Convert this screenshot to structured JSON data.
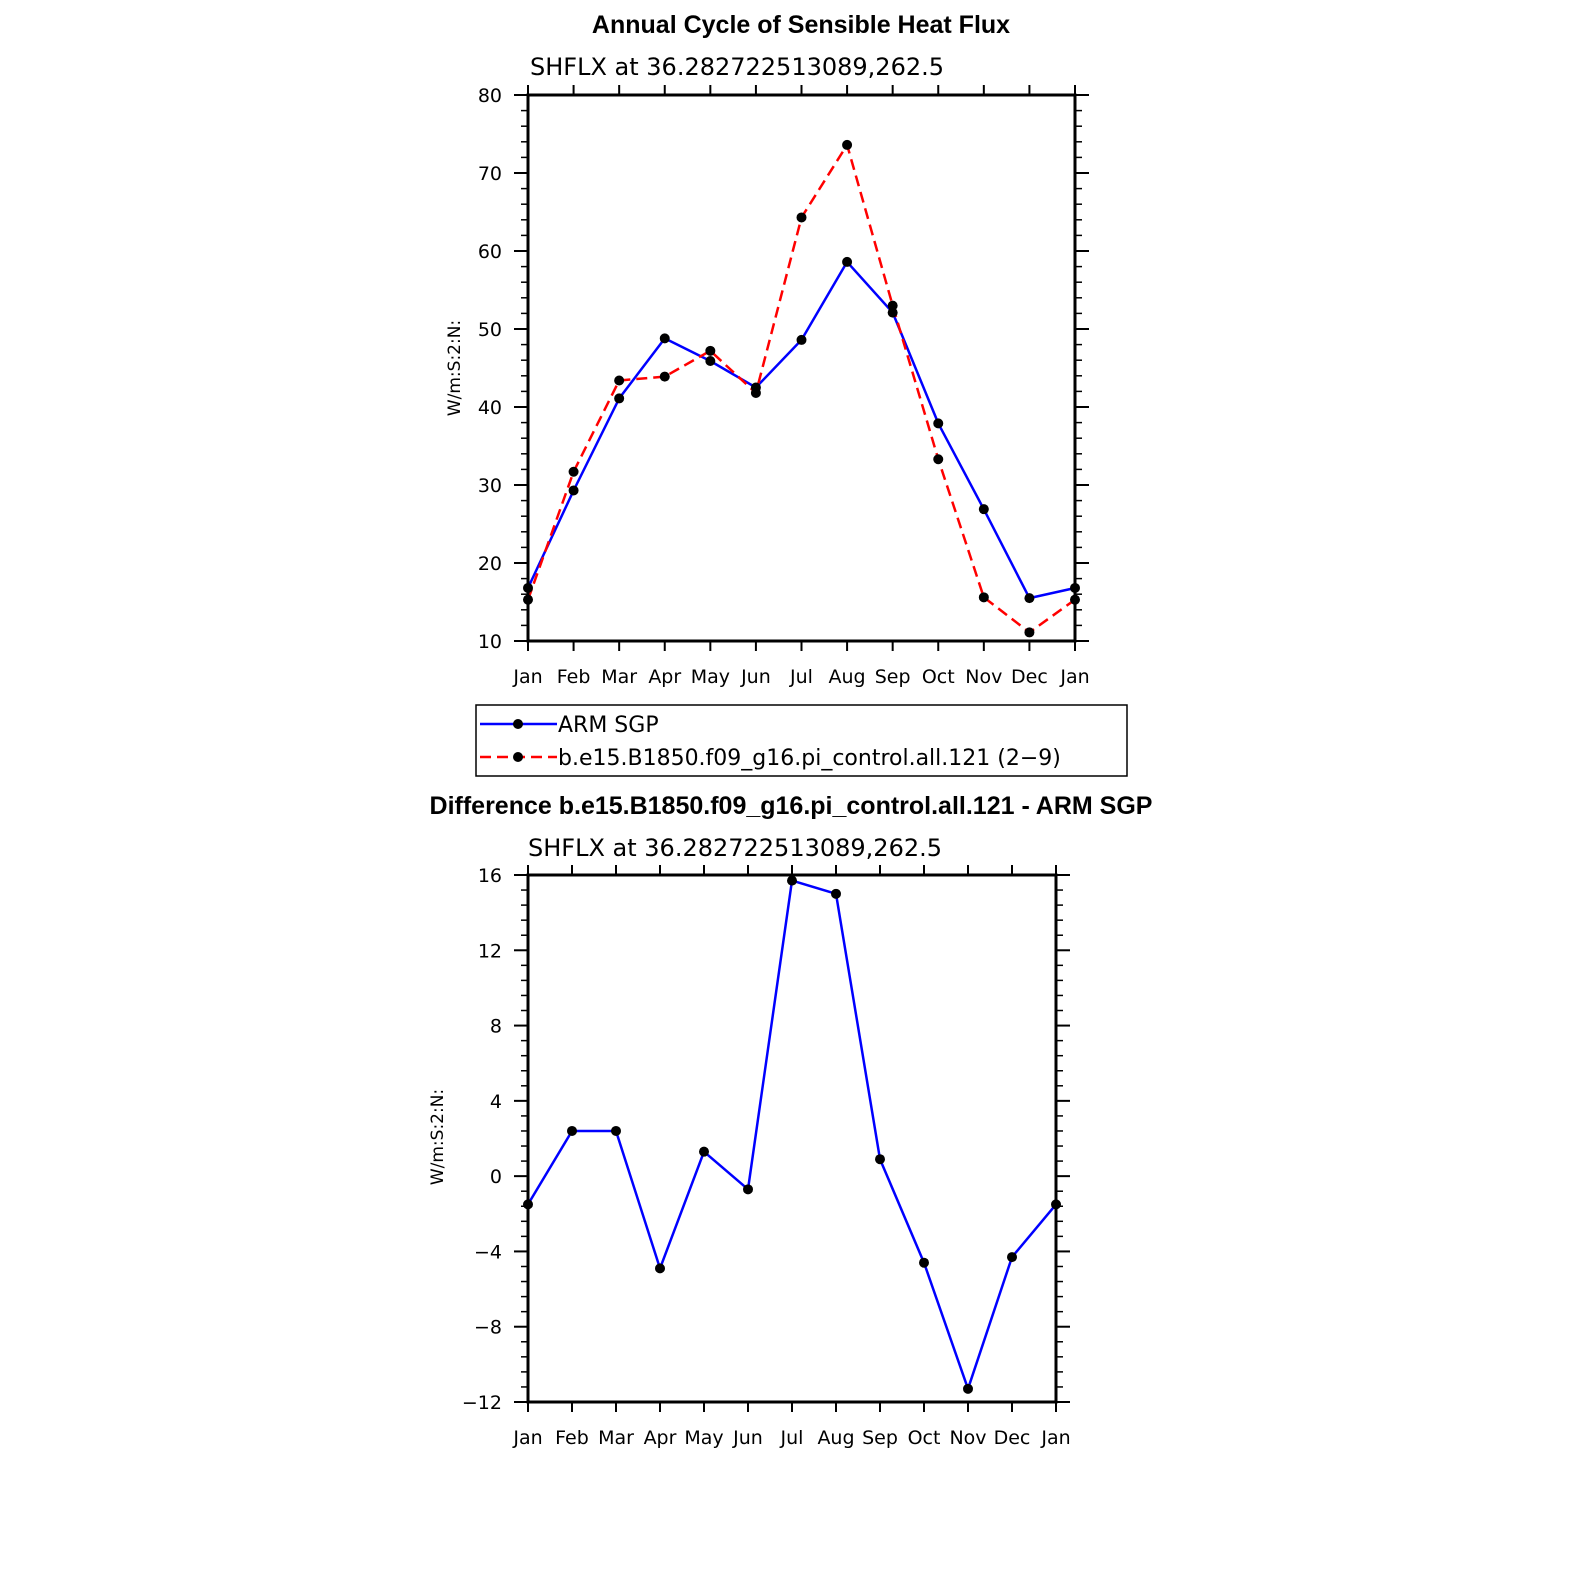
{
  "chart_data": [
    {
      "type": "line",
      "title": "Annual Cycle of Sensible Heat Flux",
      "subtitle": "SHFLX at 36.282722513089,262.5",
      "xlabel": "",
      "ylabel": "W/m:S:2:N:",
      "categories": [
        "Jan",
        "Feb",
        "Mar",
        "Apr",
        "May",
        "Jun",
        "Jul",
        "Aug",
        "Sep",
        "Oct",
        "Nov",
        "Dec",
        "Jan"
      ],
      "ylim": [
        10,
        80
      ],
      "yticks": [
        10,
        20,
        30,
        40,
        50,
        60,
        70,
        80
      ],
      "ytick_labels": [
        "10",
        "20",
        "30",
        "40",
        "50",
        "60",
        "70",
        "80"
      ],
      "grid": false,
      "legend_position": "below",
      "series": [
        {
          "name": "ARM SGP",
          "color": "#0000ff",
          "style": "solid",
          "values": [
            16.8,
            29.3,
            41.1,
            48.8,
            45.9,
            42.5,
            48.6,
            58.6,
            52.1,
            37.9,
            26.9,
            15.5,
            16.8
          ]
        },
        {
          "name": "b.e15.B1850.f09_g16.pi_control.all.121 (2−9)",
          "color": "#ff0000",
          "style": "dashed",
          "values": [
            15.3,
            31.7,
            43.4,
            43.9,
            47.2,
            41.8,
            64.3,
            73.6,
            53.0,
            33.3,
            15.6,
            11.1,
            15.3
          ]
        }
      ]
    },
    {
      "type": "line",
      "title": "Difference b.e15.B1850.f09_g16.pi_control.all.121 - ARM SGP",
      "subtitle": "SHFLX at 36.282722513089,262.5",
      "xlabel": "",
      "ylabel": "W/m:S:2:N:",
      "categories": [
        "Jan",
        "Feb",
        "Mar",
        "Apr",
        "May",
        "Jun",
        "Jul",
        "Aug",
        "Sep",
        "Oct",
        "Nov",
        "Dec",
        "Jan"
      ],
      "ylim": [
        -12,
        16
      ],
      "yticks": [
        -12,
        -8,
        -4,
        0,
        4,
        8,
        12,
        16
      ],
      "ytick_labels": [
        "−12",
        "−8",
        "−4",
        "0",
        "4",
        "8",
        "12",
        "16"
      ],
      "grid": false,
      "series": [
        {
          "name": "Difference",
          "color": "#0000ff",
          "style": "solid",
          "values": [
            -1.5,
            2.4,
            2.4,
            -4.9,
            1.3,
            -0.7,
            15.7,
            15.0,
            0.9,
            -4.6,
            -11.3,
            -4.3,
            -1.5
          ]
        }
      ]
    }
  ]
}
